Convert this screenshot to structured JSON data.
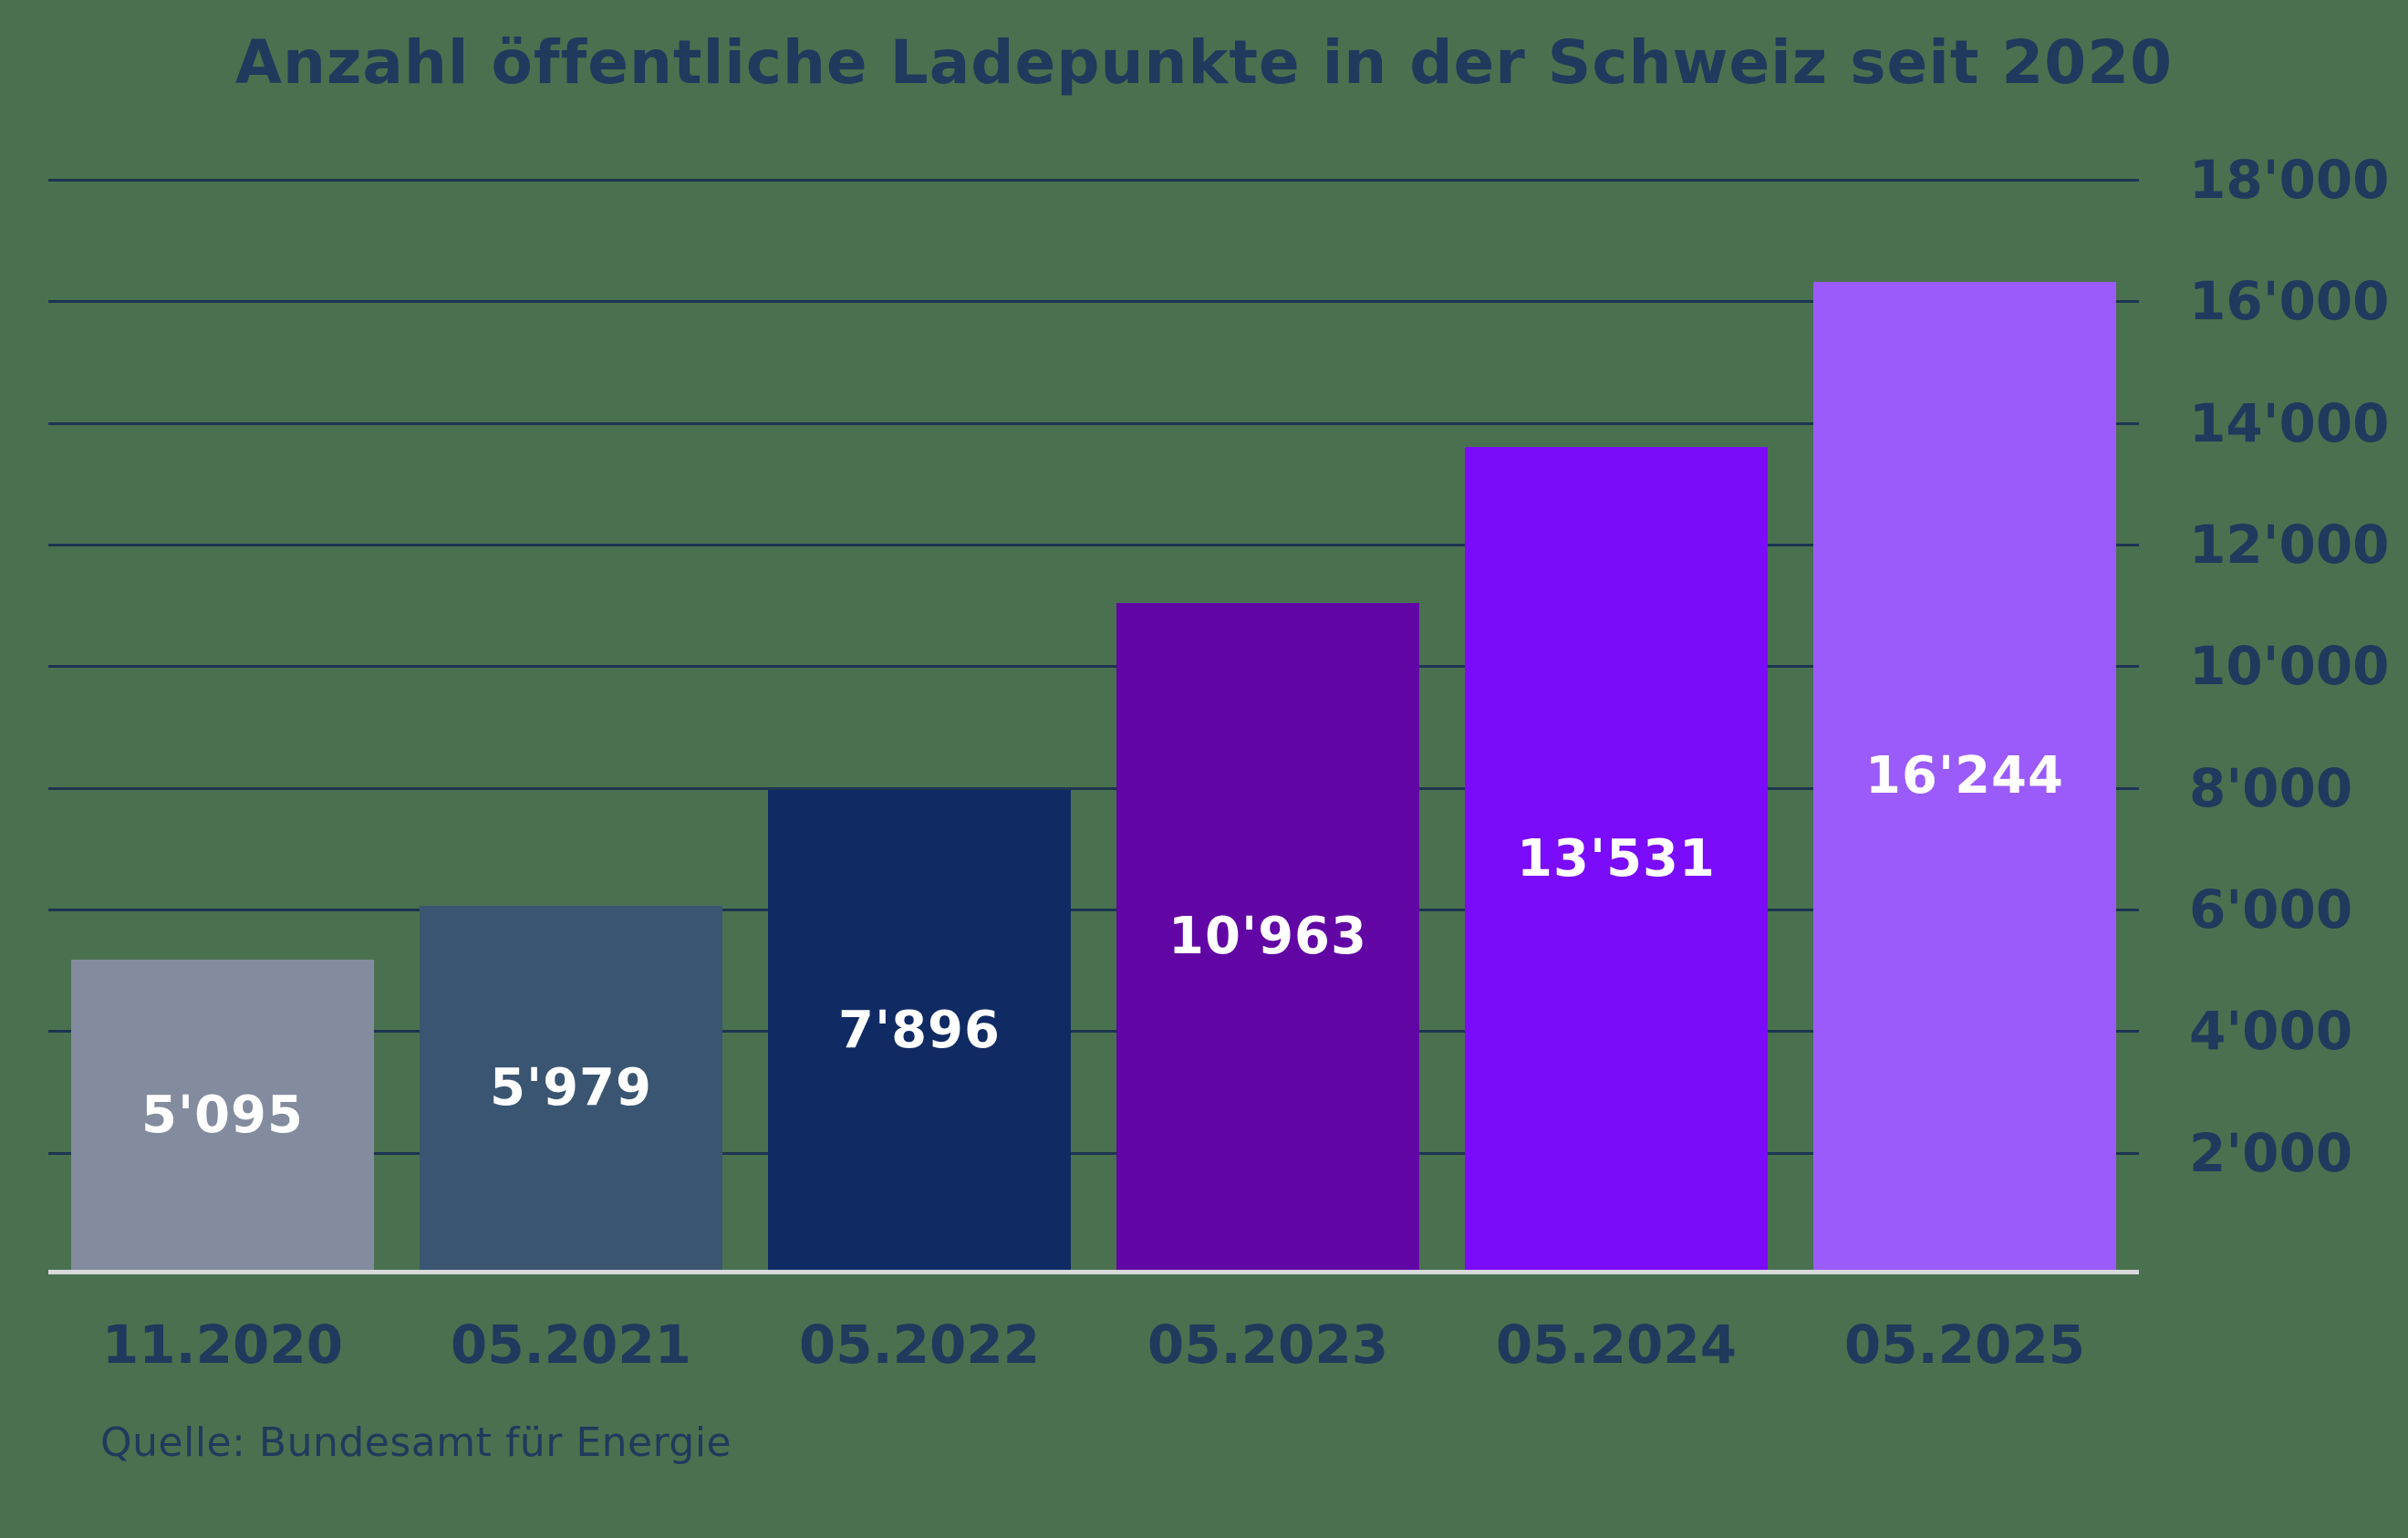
{
  "title": "Anzahl öffentliche Ladepunkte in der Schweiz seit 2020",
  "source": "Quelle: Bundesamt für Energie",
  "colors": {
    "background": "#4A714F",
    "text_navy": "#1E3A5C",
    "gridline": "#1C3551",
    "baseline": "#D8D9DD",
    "value_label": "#FFFFFF"
  },
  "chart_data": {
    "type": "bar",
    "title": "Anzahl öffentliche Ladepunkte in der Schweiz seit 2020",
    "source": "Quelle: Bundesamt für Energie",
    "categories": [
      "11.2020",
      "05.2021",
      "05.2022",
      "05.2023",
      "05.2024",
      "05.2025"
    ],
    "values": [
      5095,
      5979,
      7896,
      10963,
      13531,
      16244
    ],
    "value_labels": [
      "5'095",
      "5'979",
      "7'896",
      "10'963",
      "13'531",
      "16'244"
    ],
    "bar_colors": [
      "#828C9E",
      "#3A5571",
      "#102A63",
      "#6106A4",
      "#7A0BFB",
      "#9A5BFA"
    ],
    "xlabel": "",
    "ylabel": "",
    "ylim": [
      0,
      18000
    ],
    "ytick_step": 2000,
    "ytick_labels_top_to_bottom": [
      "18'000",
      "16'000",
      "14'000",
      "12'000",
      "10'000",
      "8'000",
      "6'000",
      "4'000",
      "2'000"
    ],
    "grid": true,
    "y_axis_position": "right",
    "legend": null
  }
}
